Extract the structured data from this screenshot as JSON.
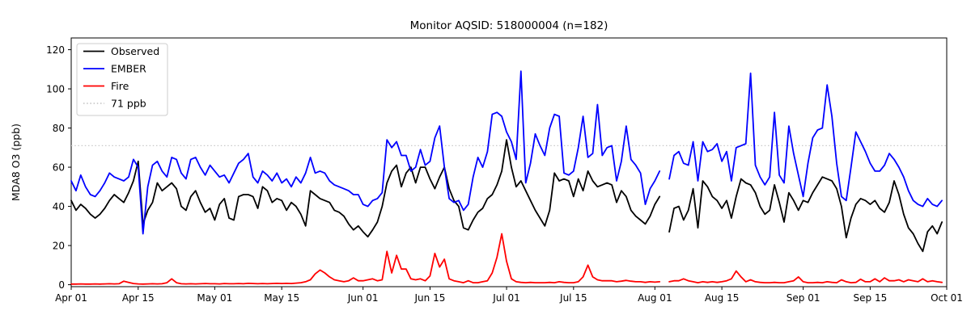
{
  "chart_data": {
    "type": "line",
    "title": "Monitor AQSID: 518000004 (n=182)",
    "ylabel": "MDA8 O3 (ppb)",
    "xlabel": "",
    "x_unit": "day index, 0 = Apr 01, 183 = Oct 01 (daily values Apr 01 - Sep 30)",
    "xlim_days": [
      0,
      183
    ],
    "ylim": [
      -1,
      126
    ],
    "yticks": [
      0,
      20,
      40,
      60,
      80,
      100,
      120
    ],
    "xticks": [
      {
        "label": "Apr 01",
        "day": 0
      },
      {
        "label": "Apr 15",
        "day": 14
      },
      {
        "label": "May 01",
        "day": 30
      },
      {
        "label": "May 15",
        "day": 44
      },
      {
        "label": "Jun 01",
        "day": 61
      },
      {
        "label": "Jun 15",
        "day": 75
      },
      {
        "label": "Jul 01",
        "day": 91
      },
      {
        "label": "Jul 15",
        "day": 105
      },
      {
        "label": "Aug 01",
        "day": 122
      },
      {
        "label": "Aug 15",
        "day": 136
      },
      {
        "label": "Sep 01",
        "day": 153
      },
      {
        "label": "Sep 15",
        "day": 167
      },
      {
        "label": "Oct 01",
        "day": 183
      }
    ],
    "grid": false,
    "legend_position": "upper left",
    "missing_day_index": 124,
    "threshold": {
      "label": "71 ppb",
      "value": 71,
      "color": "#c9c9c9",
      "style": "dotted"
    },
    "series": [
      {
        "name": "Observed",
        "color": "#000000",
        "values": [
          43,
          38,
          41,
          39,
          36,
          34,
          36,
          39,
          43,
          46,
          44,
          42,
          47,
          53,
          63,
          31,
          38,
          42,
          52,
          48,
          50,
          52,
          49,
          40,
          38,
          45,
          48,
          42,
          37,
          39,
          33,
          41,
          44,
          34,
          33,
          45,
          46,
          46,
          45,
          39,
          50,
          48,
          42,
          44,
          43,
          38,
          42,
          40,
          36,
          30,
          48,
          46,
          44,
          43,
          42,
          38,
          37,
          35,
          31,
          28,
          30,
          27,
          24.5,
          28,
          32,
          40,
          52,
          58,
          61,
          50,
          57,
          60,
          52,
          60,
          60,
          54,
          49,
          55,
          60,
          49,
          43,
          40,
          29,
          28,
          33,
          37,
          39,
          44,
          46,
          51,
          58,
          74,
          60,
          50,
          53,
          48,
          43,
          38,
          34,
          30,
          38,
          57,
          53,
          54,
          53,
          45,
          54,
          48,
          58,
          53,
          50,
          51,
          52,
          51,
          42,
          48,
          45,
          38,
          35,
          33,
          31,
          35,
          41,
          45,
          null,
          27,
          39,
          40,
          33,
          38,
          49,
          29,
          53,
          50,
          45,
          43,
          39,
          43,
          34,
          45,
          54,
          52,
          51,
          47,
          40,
          36,
          38,
          51,
          42,
          32,
          47,
          43,
          38,
          43,
          42,
          47,
          51,
          55,
          54,
          53,
          49,
          40,
          24,
          34,
          41,
          44,
          43,
          41,
          43,
          39,
          37,
          42,
          53,
          46,
          36,
          29,
          26,
          21,
          17,
          27,
          30,
          26,
          32
        ]
      },
      {
        "name": "EMBER",
        "color": "#0000ff",
        "values": [
          53,
          48,
          56,
          50,
          46,
          45,
          48,
          52,
          57,
          55,
          54,
          53,
          55,
          64,
          60,
          26,
          50,
          61,
          63,
          58,
          55,
          65,
          64,
          57,
          54,
          64,
          65,
          60,
          56,
          61,
          58,
          55,
          56,
          52,
          57,
          62,
          64,
          67,
          55,
          52,
          58,
          56,
          53,
          57,
          52,
          54,
          50,
          55,
          52,
          57,
          65,
          57,
          58,
          57,
          53,
          51,
          50,
          49,
          48,
          46,
          46,
          41,
          40,
          43,
          44,
          47,
          74,
          70,
          73,
          66,
          66,
          58,
          60,
          69,
          61,
          63,
          75,
          81,
          60,
          44,
          42,
          43,
          38,
          41,
          55,
          65,
          60,
          68,
          87,
          88,
          86,
          78,
          73,
          64,
          109,
          52,
          62,
          77,
          71,
          66,
          80,
          87,
          86,
          57,
          56,
          58,
          70,
          86,
          65,
          67,
          92,
          66,
          70,
          71,
          53,
          63,
          81,
          64,
          61,
          57,
          41,
          49,
          53,
          58,
          null,
          54,
          66,
          68,
          62,
          61,
          73,
          53,
          73,
          68,
          69,
          72,
          63,
          68,
          53,
          70,
          71,
          72,
          108,
          61,
          55,
          51,
          55,
          88,
          56,
          52,
          81,
          67,
          56,
          45,
          62,
          75,
          79,
          80,
          102,
          86,
          62,
          45,
          43,
          60,
          78,
          73,
          68,
          62,
          58,
          58,
          61,
          67,
          64,
          60,
          55,
          48,
          43,
          41,
          40,
          44,
          41,
          40,
          43
        ]
      },
      {
        "name": "Fire",
        "color": "#ff0000",
        "values": [
          0.3,
          0.3,
          0.4,
          0.3,
          0.3,
          0.4,
          0.3,
          0.4,
          0.5,
          0.4,
          0.5,
          1.8,
          1.2,
          0.6,
          0.4,
          0.3,
          0.4,
          0.5,
          0.4,
          0.5,
          1.0,
          3.0,
          1.0,
          0.5,
          0.4,
          0.5,
          0.4,
          0.5,
          0.6,
          0.5,
          0.5,
          0.4,
          0.6,
          0.5,
          0.5,
          0.6,
          0.5,
          0.7,
          0.6,
          0.5,
          0.6,
          0.5,
          0.6,
          0.7,
          0.6,
          0.7,
          0.6,
          0.8,
          1.0,
          1.5,
          2.5,
          5.5,
          7.5,
          6.0,
          4.0,
          2.5,
          2.0,
          1.5,
          2.0,
          3.5,
          2.0,
          2.0,
          2.5,
          3.0,
          2.0,
          2.5,
          17,
          6,
          15,
          8,
          8,
          3,
          2.5,
          3,
          2,
          4.5,
          16,
          9,
          13,
          3,
          2,
          1.5,
          1,
          2,
          1,
          1,
          1.5,
          2,
          6,
          14,
          26,
          12,
          3,
          1.5,
          1.2,
          1,
          1.2,
          1,
          1,
          1,
          1.2,
          1,
          1.5,
          1.2,
          1,
          1,
          1.5,
          4,
          10,
          4,
          2.5,
          2,
          2,
          2,
          1.5,
          1.8,
          2.2,
          1.8,
          1.5,
          1.5,
          1.2,
          1.5,
          1.3,
          1.5,
          null,
          1.5,
          2,
          2,
          3,
          2,
          1.5,
          1,
          1.5,
          1.2,
          1.5,
          1.2,
          1.5,
          2,
          3,
          7,
          4,
          1.5,
          2.5,
          1.5,
          1.2,
          1,
          1,
          1.2,
          1,
          1,
          1.5,
          2,
          4,
          1.5,
          1,
          1,
          1.2,
          1,
          1.5,
          1.2,
          1,
          2.5,
          1.5,
          1,
          1.2,
          2.8,
          1.5,
          1.5,
          3,
          1.5,
          3.5,
          2,
          2,
          2.5,
          1.5,
          2.5,
          2,
          1.5,
          3,
          1.5,
          2,
          1.5,
          1.2
        ]
      }
    ]
  },
  "frame_color": "#000000",
  "background_color": "#ffffff"
}
